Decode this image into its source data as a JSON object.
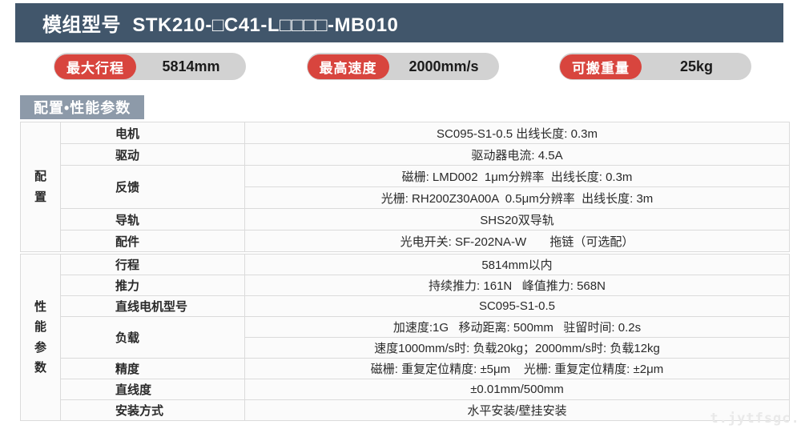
{
  "header": {
    "title": "模组型号  STK210-□C41-L□□□□-MB010",
    "bg_color": "#41566B"
  },
  "badges": [
    {
      "tag": "最大行程",
      "value": "5814mm"
    },
    {
      "tag": "最高速度",
      "value": "2000mm/s"
    },
    {
      "tag": "可搬重量",
      "value": "25kg"
    }
  ],
  "badge_colors": {
    "tag_bg": "#D8453E",
    "pill_bg": "#D2D2D2"
  },
  "section_title": "配置•性能参数",
  "section_title_bg": "#8D9AA9",
  "table": {
    "config": {
      "group": "配\n置",
      "rows": {
        "motor": {
          "label": "电机",
          "value": "SC095-S1-0.5 出线长度: 0.3m"
        },
        "drive": {
          "label": "驱动",
          "value": "驱动器电流: 4.5A"
        },
        "feedback": {
          "label": "反馈",
          "value1": "磁栅: LMD002  1μm分辨率  出线长度: 0.3m",
          "value2": "光栅: RH200Z30A00A  0.5μm分辨率  出线长度: 3m"
        },
        "rail": {
          "label": "导轨",
          "value": "SHS20双导轨"
        },
        "accessory": {
          "label": "配件",
          "value": "光电开关: SF-202NA-W       拖链（可选配）"
        }
      }
    },
    "performance": {
      "group": "性\n能\n参\n数",
      "rows": {
        "stroke": {
          "label": "行程",
          "value": "5814mm以内"
        },
        "thrust": {
          "label": "推力",
          "value": "持续推力: 161N   峰值推力: 568N"
        },
        "motor_model": {
          "label": "直线电机型号",
          "value": "SC095-S1-0.5"
        },
        "load": {
          "label": "负载",
          "value1": "加速度:1G   移动距离: 500mm   驻留时间: 0.2s",
          "value2": "速度1000mm/s时: 负载20kg；2000mm/s时: 负载12kg"
        },
        "accuracy": {
          "label": "精度",
          "value": "磁栅: 重复定位精度: ±5μm    光栅: 重复定位精度: ±2μm"
        },
        "straightness": {
          "label": "直线度",
          "value": "±0.01mm/500mm"
        },
        "mounting": {
          "label": "安装方式",
          "value": "水平安装/壁挂安装"
        }
      }
    }
  },
  "watermark": "t.jytfsgc.c"
}
